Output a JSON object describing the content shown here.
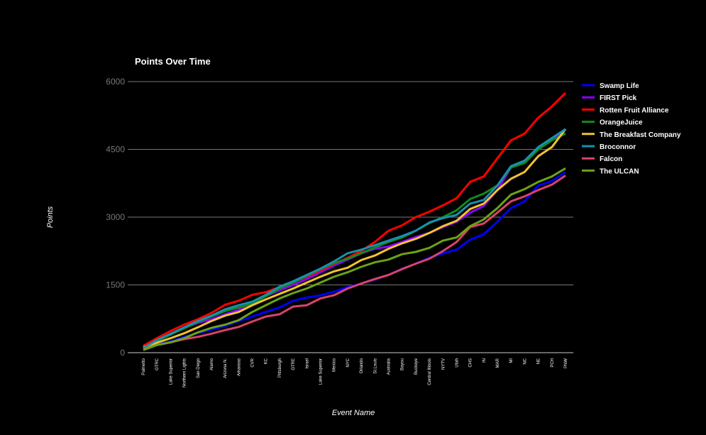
{
  "chart_data": {
    "type": "line",
    "title": "Points Over Time",
    "x_label": "Event Name",
    "y_label": "Points",
    "categories": [
      "Palmetto",
      "GTRC",
      "Lake Superior",
      "Northern Lights",
      "San Diego",
      "Alamo",
      "Arizona N.",
      "Arkansas",
      "CVR",
      "KC",
      "Pittsburgh",
      "GTRE",
      "Israel",
      "Lake Superior",
      "Mexico",
      "NYC",
      "Orlando",
      "St.Louis",
      "Australia",
      "Bayou",
      "Buckeye",
      "Central Illinois",
      "NYTV",
      "Utah",
      "CHS",
      "IN",
      "MAR",
      "MI",
      "NC",
      "NE",
      "PCH",
      "PNW"
    ],
    "ylim": [
      0,
      6000
    ],
    "yticks": [
      0,
      1500,
      3000,
      4500,
      6000
    ],
    "grid": true,
    "legend": "right",
    "series": [
      {
        "name": "Swamp Life",
        "color": "#0000ff",
        "values": [
          80,
          180,
          250,
          350,
          430,
          510,
          590,
          700,
          800,
          900,
          1000,
          1150,
          1220,
          1270,
          1350,
          1450,
          1530,
          1620,
          1720,
          1860,
          1970,
          2100,
          2200,
          2280,
          2500,
          2620,
          2900,
          3200,
          3350,
          3700,
          3800,
          4000
        ]
      },
      {
        "name": "FIRST Pick",
        "color": "#8b00ff",
        "values": [
          100,
          270,
          420,
          550,
          660,
          740,
          850,
          950,
          1120,
          1250,
          1380,
          1500,
          1630,
          1780,
          1930,
          2060,
          2200,
          2300,
          2350,
          2450,
          2560,
          2650,
          2780,
          2900,
          3100,
          3250,
          3600,
          4100,
          4200,
          4500,
          4700,
          4950
        ]
      },
      {
        "name": "Rotten Fruit Alliance",
        "color": "#ff0000",
        "values": [
          150,
          320,
          480,
          620,
          740,
          880,
          1060,
          1150,
          1280,
          1340,
          1450,
          1560,
          1680,
          1820,
          1960,
          2100,
          2250,
          2450,
          2700,
          2820,
          3000,
          3120,
          3260,
          3420,
          3780,
          3900,
          4300,
          4700,
          4850,
          5200,
          5450,
          5750
        ]
      },
      {
        "name": "OrangeJuice",
        "color": "#138a1a",
        "values": [
          100,
          260,
          400,
          540,
          680,
          800,
          920,
          1000,
          1080,
          1250,
          1420,
          1550,
          1700,
          1850,
          1980,
          2080,
          2200,
          2330,
          2450,
          2550,
          2700,
          2870,
          3000,
          3150,
          3400,
          3520,
          3700,
          4100,
          4200,
          4500,
          4700,
          4850
        ]
      },
      {
        "name": "The Breakfast Company",
        "color": "#f2c232",
        "values": [
          120,
          220,
          320,
          430,
          560,
          700,
          820,
          900,
          1050,
          1180,
          1300,
          1420,
          1550,
          1680,
          1800,
          1880,
          2050,
          2150,
          2300,
          2420,
          2520,
          2650,
          2800,
          2920,
          3180,
          3300,
          3600,
          3850,
          4000,
          4350,
          4550,
          4950
        ]
      },
      {
        "name": "Broconnor",
        "color": "#1a8fb0",
        "values": [
          100,
          280,
          420,
          560,
          700,
          820,
          960,
          1050,
          1130,
          1280,
          1460,
          1580,
          1720,
          1860,
          2020,
          2200,
          2280,
          2380,
          2480,
          2580,
          2700,
          2880,
          2980,
          3050,
          3300,
          3380,
          3700,
          4130,
          4250,
          4550,
          4750,
          4950
        ]
      },
      {
        "name": "Falcon",
        "color": "#d9436a",
        "values": [
          80,
          170,
          230,
          300,
          350,
          420,
          500,
          570,
          690,
          800,
          850,
          1020,
          1050,
          1200,
          1270,
          1420,
          1530,
          1630,
          1720,
          1850,
          1970,
          2080,
          2250,
          2450,
          2780,
          2860,
          3100,
          3350,
          3460,
          3600,
          3720,
          3920
        ]
      },
      {
        "name": "The ULCAN",
        "color": "#6aa314",
        "values": [
          60,
          170,
          230,
          320,
          450,
          550,
          620,
          720,
          900,
          1050,
          1200,
          1320,
          1420,
          1550,
          1680,
          1780,
          1900,
          2000,
          2060,
          2180,
          2230,
          2320,
          2480,
          2550,
          2800,
          2950,
          3200,
          3500,
          3620,
          3780,
          3900,
          4080
        ]
      }
    ]
  }
}
